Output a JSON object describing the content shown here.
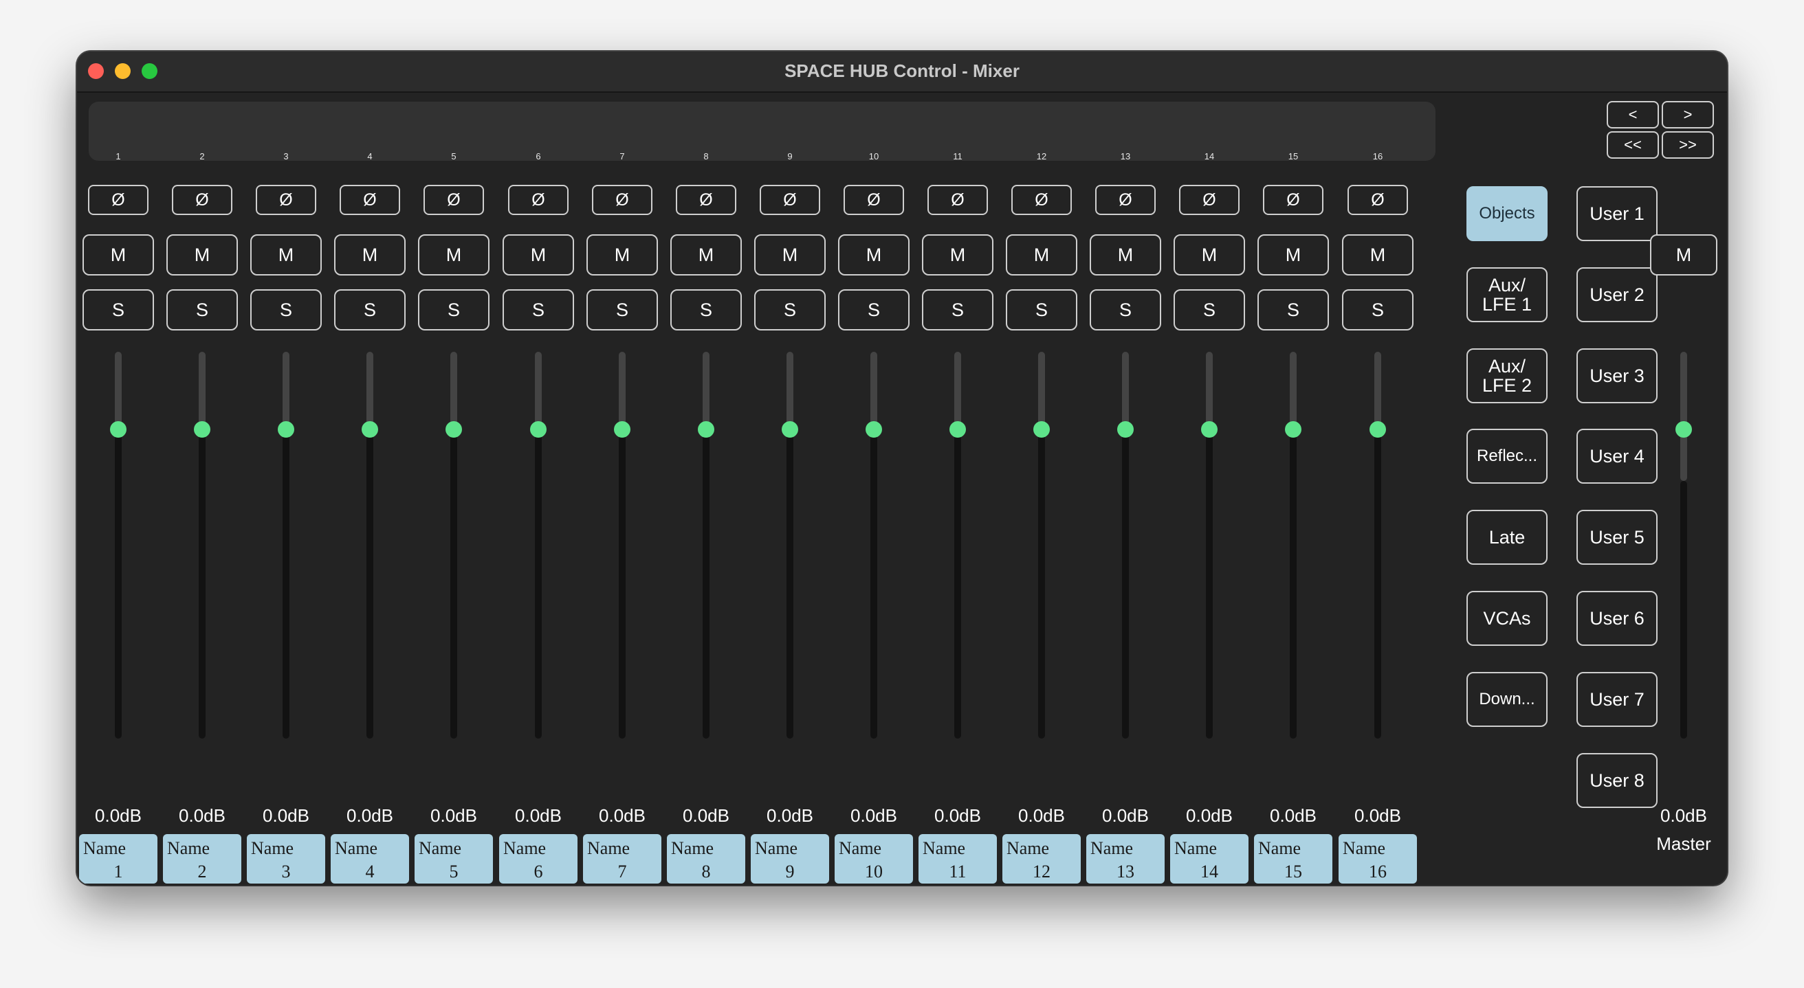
{
  "window": {
    "title": "SPACE HUB Control - Mixer"
  },
  "meter_numbers": [
    "1",
    "2",
    "3",
    "4",
    "5",
    "6",
    "7",
    "8",
    "9",
    "10",
    "11",
    "12",
    "13",
    "14",
    "15",
    "16"
  ],
  "channels": [
    {
      "phase": "Ø",
      "mute": "M",
      "solo": "S",
      "db": "0.0dB",
      "name_label": "Name",
      "number": "1",
      "fader_level": 0.7
    },
    {
      "phase": "Ø",
      "mute": "M",
      "solo": "S",
      "db": "0.0dB",
      "name_label": "Name",
      "number": "2",
      "fader_level": 0.7
    },
    {
      "phase": "Ø",
      "mute": "M",
      "solo": "S",
      "db": "0.0dB",
      "name_label": "Name",
      "number": "3",
      "fader_level": 0.7
    },
    {
      "phase": "Ø",
      "mute": "M",
      "solo": "S",
      "db": "0.0dB",
      "name_label": "Name",
      "number": "4",
      "fader_level": 0.7
    },
    {
      "phase": "Ø",
      "mute": "M",
      "solo": "S",
      "db": "0.0dB",
      "name_label": "Name",
      "number": "5",
      "fader_level": 0.7
    },
    {
      "phase": "Ø",
      "mute": "M",
      "solo": "S",
      "db": "0.0dB",
      "name_label": "Name",
      "number": "6",
      "fader_level": 0.7
    },
    {
      "phase": "Ø",
      "mute": "M",
      "solo": "S",
      "db": "0.0dB",
      "name_label": "Name",
      "number": "7",
      "fader_level": 0.7
    },
    {
      "phase": "Ø",
      "mute": "M",
      "solo": "S",
      "db": "0.0dB",
      "name_label": "Name",
      "number": "8",
      "fader_level": 0.7
    },
    {
      "phase": "Ø",
      "mute": "M",
      "solo": "S",
      "db": "0.0dB",
      "name_label": "Name",
      "number": "9",
      "fader_level": 0.7
    },
    {
      "phase": "Ø",
      "mute": "M",
      "solo": "S",
      "db": "0.0dB",
      "name_label": "Name",
      "number": "10",
      "fader_level": 0.7
    },
    {
      "phase": "Ø",
      "mute": "M",
      "solo": "S",
      "db": "0.0dB",
      "name_label": "Name",
      "number": "11",
      "fader_level": 0.7
    },
    {
      "phase": "Ø",
      "mute": "M",
      "solo": "S",
      "db": "0.0dB",
      "name_label": "Name",
      "number": "12",
      "fader_level": 0.7
    },
    {
      "phase": "Ø",
      "mute": "M",
      "solo": "S",
      "db": "0.0dB",
      "name_label": "Name",
      "number": "13",
      "fader_level": 0.7
    },
    {
      "phase": "Ø",
      "mute": "M",
      "solo": "S",
      "db": "0.0dB",
      "name_label": "Name",
      "number": "14",
      "fader_level": 0.7
    },
    {
      "phase": "Ø",
      "mute": "M",
      "solo": "S",
      "db": "0.0dB",
      "name_label": "Name",
      "number": "15",
      "fader_level": 0.7
    },
    {
      "phase": "Ø",
      "mute": "M",
      "solo": "S",
      "db": "0.0dB",
      "name_label": "Name",
      "number": "16",
      "fader_level": 0.7
    }
  ],
  "nav": {
    "prev": "<",
    "next": ">",
    "first": "<<",
    "last": ">>"
  },
  "groups": [
    {
      "label": "Objects",
      "active": true
    },
    {
      "label": "Aux/\nLFE 1",
      "active": false
    },
    {
      "label": "Aux/\nLFE 2",
      "active": false
    },
    {
      "label": "Reflec...",
      "active": false
    },
    {
      "label": "Late",
      "active": false
    },
    {
      "label": "VCAs",
      "active": false
    },
    {
      "label": "Down...",
      "active": false
    }
  ],
  "users": [
    "User 1",
    "User 2",
    "User 3",
    "User 4",
    "User 5",
    "User 6",
    "User 7",
    "User 8"
  ],
  "master": {
    "mute": "M",
    "db": "0.0dB",
    "label": "Master",
    "fader_level": 0.7
  },
  "colors": {
    "window_bg": "#232323",
    "knob": "#5ee38a",
    "name_bg": "#acd2e2",
    "active_btn": "#a9cfe0"
  }
}
